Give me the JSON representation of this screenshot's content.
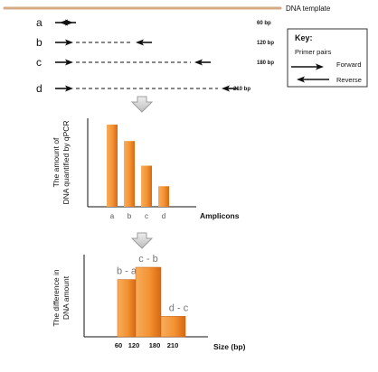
{
  "template_label": "DNA template",
  "primers": [
    {
      "letter": "a",
      "size": "60 bp"
    },
    {
      "letter": "b",
      "size": "120 bp"
    },
    {
      "letter": "c",
      "size": "180 bp"
    },
    {
      "letter": "d",
      "size": "210 bp"
    }
  ],
  "key": {
    "title": "Key:",
    "subtitle": "Primer pairs",
    "forward": "Forward",
    "reverse": "Reverse"
  },
  "chart_data": [
    {
      "type": "bar",
      "categories": [
        "a",
        "b",
        "c",
        "d"
      ],
      "values": [
        100,
        80,
        50,
        25
      ],
      "ylabel": "The amount of DNA quantified by qPCR",
      "xlabel": "Amplicons",
      "ylim": [
        0,
        110
      ],
      "grid": false
    },
    {
      "type": "bar",
      "tick_labels": [
        "60",
        "120",
        "180",
        "210"
      ],
      "bars": [
        {
          "label": "b - a",
          "x_start": 60,
          "x_end": 120,
          "value": 70
        },
        {
          "label": "c - b",
          "x_start": 120,
          "x_end": 180,
          "value": 85
        },
        {
          "label": "d - c",
          "x_start": 180,
          "x_end": 210,
          "value": 25
        }
      ],
      "ylabel": "The difference in DNA amount",
      "xlabel": "Size (bp)",
      "xlim": [
        30,
        240
      ],
      "ylim": [
        0,
        100
      ],
      "grid": false
    }
  ],
  "colors": {
    "template_line": "#d4ab85",
    "bar_light": "#f7a24d",
    "bar_dark": "#d76912",
    "down_arrow": "#a8a8a8"
  },
  "icons": {
    "down_arrow": "down-arrow-icon",
    "forward_arrow": "forward-arrow-icon",
    "reverse_arrow": "reverse-arrow-icon"
  }
}
